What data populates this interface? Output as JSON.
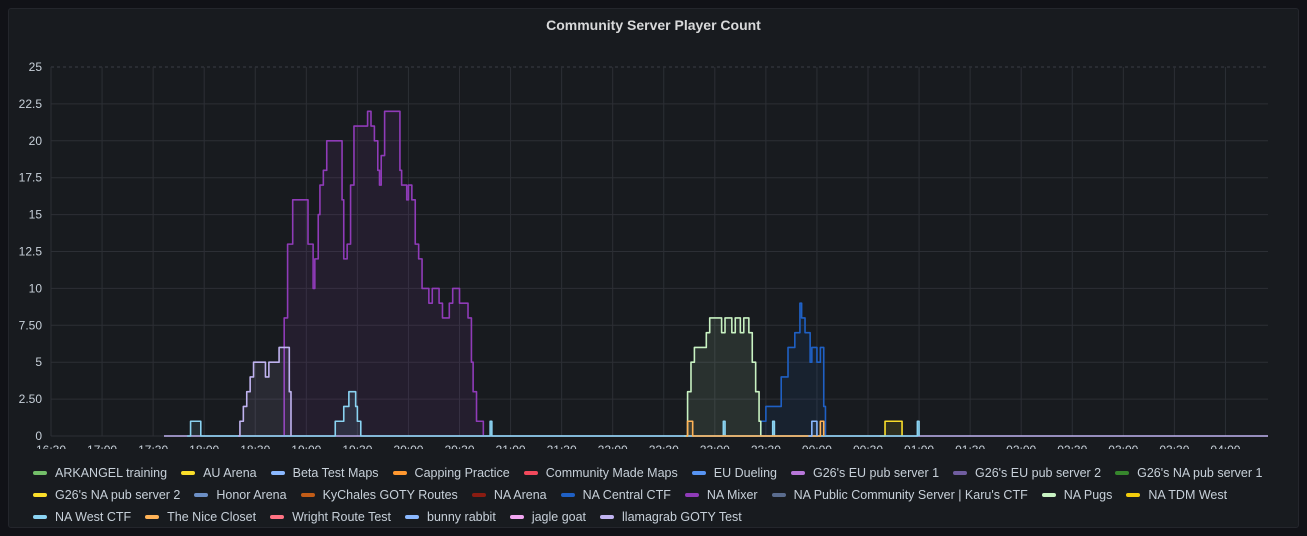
{
  "panel": {
    "title": "Community Server Player Count"
  },
  "chart_data": {
    "type": "line",
    "title": "Community Server Player Count",
    "xlabel": "",
    "ylabel": "",
    "ylim": [
      0,
      25
    ],
    "y_ticks": [
      {
        "v": 0,
        "l": "0"
      },
      {
        "v": 2.5,
        "l": "2.50"
      },
      {
        "v": 5,
        "l": "5"
      },
      {
        "v": 7.5,
        "l": "7.50"
      },
      {
        "v": 10,
        "l": "10"
      },
      {
        "v": 12.5,
        "l": "12.5"
      },
      {
        "v": 15,
        "l": "15"
      },
      {
        "v": 17.5,
        "l": "17.5"
      },
      {
        "v": 20,
        "l": "20"
      },
      {
        "v": 22.5,
        "l": "22.5"
      },
      {
        "v": 25,
        "l": "25"
      }
    ],
    "xlim": [
      "16:30",
      "04:25"
    ],
    "x_ticks": [
      "16:30",
      "17:00",
      "17:30",
      "18:00",
      "18:30",
      "19:00",
      "19:30",
      "20:00",
      "20:30",
      "21:00",
      "21:30",
      "22:00",
      "22:30",
      "23:00",
      "23:30",
      "00:00",
      "00:30",
      "01:00",
      "01:30",
      "02:00",
      "02:30",
      "03:00",
      "03:30",
      "04:00"
    ],
    "grid": true,
    "legend_position": "bottom",
    "series": [
      {
        "name": "ARKANGEL training",
        "color": "#73bf69",
        "points": []
      },
      {
        "name": "AU Arena",
        "color": "#fade2a",
        "points": []
      },
      {
        "name": "Beta Test Maps",
        "color": "#8ab8ff",
        "points": []
      },
      {
        "name": "Capping Practice",
        "color": "#ff9830",
        "points": []
      },
      {
        "name": "Community Made Maps",
        "color": "#f2495c",
        "points": []
      },
      {
        "name": "EU Dueling",
        "color": "#5794f2",
        "points": []
      },
      {
        "name": "G26's EU pub server 1",
        "color": "#b877d9",
        "points": []
      },
      {
        "name": "G26's EU pub server 2",
        "color": "#705da0",
        "points": []
      },
      {
        "name": "G26's NA pub server 1",
        "color": "#37872d",
        "points": []
      },
      {
        "name": "G26's NA pub server 2",
        "color": "#fade2a",
        "points": [
          [
            "00:37",
            0
          ],
          [
            "00:40",
            1
          ],
          [
            "00:48",
            1
          ],
          [
            "00:50",
            0
          ]
        ]
      },
      {
        "name": "Honor Arena",
        "color": "#6c8fc5",
        "points": []
      },
      {
        "name": "KyChales GOTY Routes",
        "color": "#c15c17",
        "points": []
      },
      {
        "name": "NA Arena",
        "color": "#8a1c12",
        "points": []
      },
      {
        "name": "NA Central CTF",
        "color": "#1f60c4",
        "points": [
          [
            "23:25",
            0
          ],
          [
            "23:27",
            1
          ],
          [
            "23:30",
            2
          ],
          [
            "23:36",
            2
          ],
          [
            "23:39",
            4
          ],
          [
            "23:43",
            6
          ],
          [
            "23:47",
            7
          ],
          [
            "23:50",
            9
          ],
          [
            "23:51",
            8
          ],
          [
            "23:53",
            7
          ],
          [
            "23:56",
            5
          ],
          [
            "23:57",
            6
          ],
          [
            "23:59",
            6
          ],
          [
            "24:00",
            5
          ],
          [
            "24:02",
            6
          ],
          [
            "24:04",
            2
          ],
          [
            "24:05",
            0
          ]
        ]
      },
      {
        "name": "NA Mixer",
        "color": "#8f3bb8",
        "points": [
          [
            "18:45",
            0
          ],
          [
            "18:47",
            8
          ],
          [
            "18:49",
            13
          ],
          [
            "18:52",
            16
          ],
          [
            "19:00",
            16
          ],
          [
            "19:01",
            13
          ],
          [
            "19:03",
            13
          ],
          [
            "19:04",
            10
          ],
          [
            "19:05",
            12
          ],
          [
            "19:07",
            15
          ],
          [
            "19:08",
            17
          ],
          [
            "19:10",
            18
          ],
          [
            "19:12",
            20
          ],
          [
            "19:14",
            20
          ],
          [
            "19:20",
            20
          ],
          [
            "19:21",
            16
          ],
          [
            "19:22",
            12
          ],
          [
            "19:24",
            13
          ],
          [
            "19:26",
            17
          ],
          [
            "19:28",
            21
          ],
          [
            "19:35",
            21
          ],
          [
            "19:36",
            22
          ],
          [
            "19:38",
            21
          ],
          [
            "19:40",
            20
          ],
          [
            "19:42",
            18
          ],
          [
            "19:43",
            17
          ],
          [
            "19:44",
            19
          ],
          [
            "19:46",
            22
          ],
          [
            "19:53",
            22
          ],
          [
            "19:55",
            18
          ],
          [
            "19:56",
            17
          ],
          [
            "19:58",
            17
          ],
          [
            "19:59",
            16
          ],
          [
            "20:00",
            17
          ],
          [
            "20:02",
            16
          ],
          [
            "20:04",
            13
          ],
          [
            "20:06",
            12
          ],
          [
            "20:08",
            10
          ],
          [
            "20:11",
            10
          ],
          [
            "20:12",
            9
          ],
          [
            "20:14",
            10
          ],
          [
            "20:17",
            10
          ],
          [
            "20:18",
            9
          ],
          [
            "20:20",
            8
          ],
          [
            "20:22",
            8
          ],
          [
            "20:24",
            9
          ],
          [
            "20:26",
            10
          ],
          [
            "20:28",
            10
          ],
          [
            "20:30",
            9
          ],
          [
            "20:33",
            9
          ],
          [
            "20:35",
            8
          ],
          [
            "20:37",
            5
          ],
          [
            "20:38",
            3
          ],
          [
            "20:40",
            1
          ],
          [
            "20:43",
            1
          ],
          [
            "20:44",
            0
          ]
        ]
      },
      {
        "name": "NA Public Community Server | Karu's CTF",
        "color": "#5a6c8e",
        "points": []
      },
      {
        "name": "NA Pugs",
        "color": "#c8f2c2",
        "points": [
          [
            "22:42",
            0
          ],
          [
            "22:44",
            3
          ],
          [
            "22:46",
            5
          ],
          [
            "22:48",
            6
          ],
          [
            "22:55",
            7
          ],
          [
            "22:57",
            8
          ],
          [
            "23:02",
            8
          ],
          [
            "23:04",
            7
          ],
          [
            "23:06",
            8
          ],
          [
            "23:10",
            7
          ],
          [
            "23:12",
            8
          ],
          [
            "23:15",
            7
          ],
          [
            "23:17",
            8
          ],
          [
            "23:20",
            7
          ],
          [
            "23:22",
            5
          ],
          [
            "23:24",
            3
          ],
          [
            "23:26",
            1
          ],
          [
            "23:27",
            0
          ]
        ]
      },
      {
        "name": "NA TDM West",
        "color": "#f2cc0c",
        "points": []
      },
      {
        "name": "NA West CTF",
        "color": "#8ad3f2",
        "points": [
          [
            "17:50",
            0
          ],
          [
            "17:52",
            1
          ],
          [
            "17:56",
            1
          ],
          [
            "17:58",
            0
          ],
          [
            "19:15",
            0
          ],
          [
            "19:17",
            1
          ],
          [
            "19:21",
            1
          ],
          [
            "19:22",
            2
          ],
          [
            "19:25",
            3
          ],
          [
            "19:28",
            3
          ],
          [
            "19:29",
            2
          ],
          [
            "19:30",
            1
          ],
          [
            "19:32",
            0
          ],
          [
            "20:47",
            0
          ],
          [
            "20:48",
            1
          ],
          [
            "20:49",
            0
          ],
          [
            "23:04",
            0
          ],
          [
            "23:05",
            1
          ],
          [
            "23:06",
            0
          ],
          [
            "23:33",
            0
          ],
          [
            "23:34",
            1
          ],
          [
            "23:35",
            0
          ],
          [
            "24:58",
            0
          ],
          [
            "24:59",
            1
          ],
          [
            "25:00",
            0
          ]
        ]
      },
      {
        "name": "The Nice Closet",
        "color": "#ffb357",
        "points": [
          [
            "22:43",
            0
          ],
          [
            "22:44",
            1
          ],
          [
            "22:46",
            1
          ],
          [
            "22:47",
            0
          ],
          [
            "24:01",
            0
          ],
          [
            "24:02",
            1
          ],
          [
            "24:04",
            0
          ]
        ]
      },
      {
        "name": "Wright Route Test",
        "color": "#ff7383",
        "points": []
      },
      {
        "name": "bunny rabbit",
        "color": "#8ab8ff",
        "points": [
          [
            "23:55",
            0
          ],
          [
            "23:57",
            1
          ],
          [
            "24:00",
            0
          ]
        ]
      },
      {
        "name": "jagle goat",
        "color": "#f2a6f2",
        "points": []
      },
      {
        "name": "llamagrab GOTY Test",
        "color": "#c0b3f0",
        "points": [
          [
            "18:20",
            0
          ],
          [
            "18:21",
            1
          ],
          [
            "18:23",
            2
          ],
          [
            "18:25",
            3
          ],
          [
            "18:27",
            4
          ],
          [
            "18:29",
            5
          ],
          [
            "18:35",
            5
          ],
          [
            "18:36",
            4
          ],
          [
            "18:38",
            5
          ],
          [
            "18:43",
            5
          ],
          [
            "18:44",
            6
          ],
          [
            "18:48",
            6
          ],
          [
            "18:50",
            3
          ],
          [
            "18:51",
            0
          ]
        ]
      }
    ]
  }
}
